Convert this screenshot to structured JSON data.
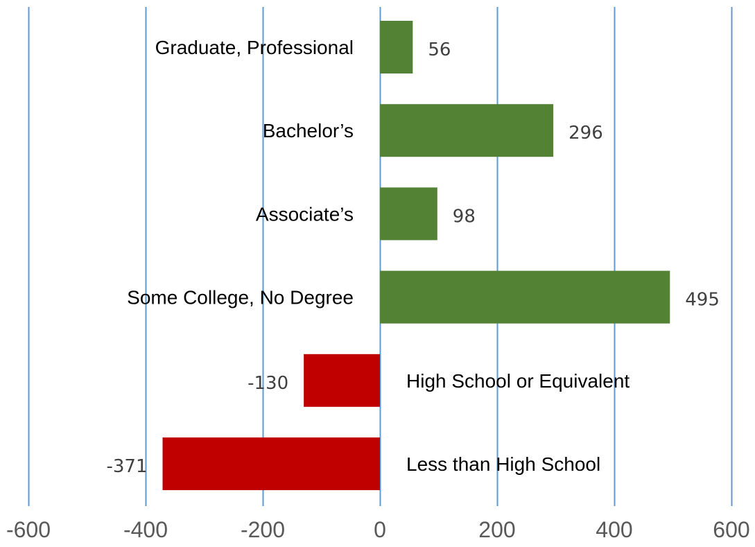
{
  "chart_data": {
    "type": "bar",
    "orientation": "horizontal",
    "categories": [
      "Graduate, Professional",
      "Bachelor’s",
      "Associate’s",
      "Some College, No Degree",
      "High School or Equivalent",
      "Less than High School"
    ],
    "values": [
      56,
      296,
      98,
      495,
      -130,
      -371
    ],
    "value_labels": [
      "56",
      "296",
      "98",
      "495",
      "-130",
      "-371"
    ],
    "xlim": [
      -600,
      600
    ],
    "x_ticks": [
      -600,
      -400,
      -200,
      0,
      200,
      400,
      600
    ],
    "tick_labels": [
      "-600",
      "-400",
      "-200",
      "0",
      "200",
      "400",
      "600"
    ],
    "grid": "vertical",
    "legend": "none",
    "colors": {
      "positive": "#548235",
      "negative": "#C00000",
      "gridline": "#5B9BD5"
    }
  }
}
